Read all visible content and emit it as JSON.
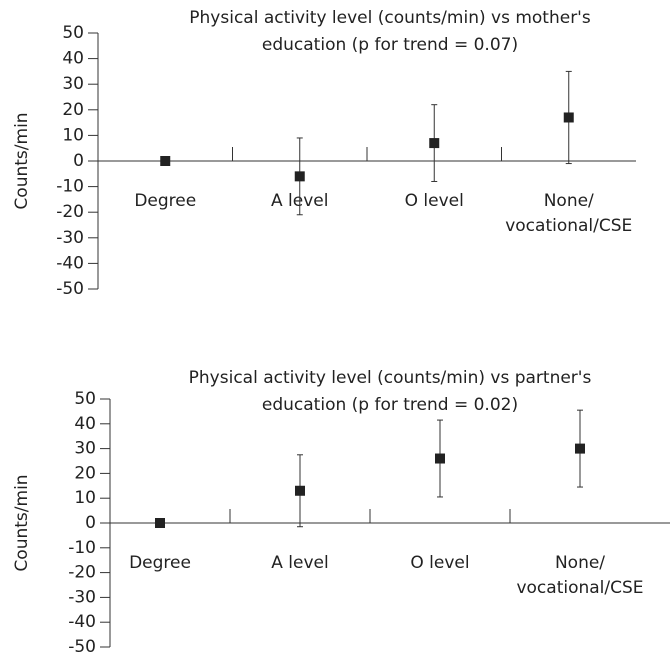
{
  "chart_data": [
    {
      "type": "errorbar",
      "title": "Physical activity level (counts/min) vs mother's\neducation  (p for trend = 0.07)",
      "y_label": "Counts/min",
      "categories": [
        "Degree",
        "A level",
        "O level",
        "None/\nvocational/CSE"
      ],
      "values": [
        0,
        -6,
        7,
        17
      ],
      "errors": [
        null,
        15,
        15,
        18
      ],
      "color": "#222222",
      "ylim": [
        -50,
        50
      ],
      "yticks": [
        -50,
        -40,
        -30,
        -20,
        -10,
        0,
        10,
        20,
        30,
        40,
        50
      ]
    },
    {
      "type": "errorbar",
      "title": "Physical activity level (counts/min) vs partner's\neducation (p for trend = 0.02)",
      "y_label": "Counts/min",
      "categories": [
        "Degree",
        "A level",
        "O level",
        "None/\nvocational/CSE"
      ],
      "values": [
        0,
        13,
        26,
        30
      ],
      "errors": [
        null,
        14.5,
        15.5,
        15.5
      ],
      "color": "#222222",
      "ylim": [
        -50,
        50
      ],
      "yticks": [
        -50,
        -40,
        -30,
        -20,
        -10,
        0,
        10,
        20,
        30,
        40,
        50
      ]
    }
  ]
}
